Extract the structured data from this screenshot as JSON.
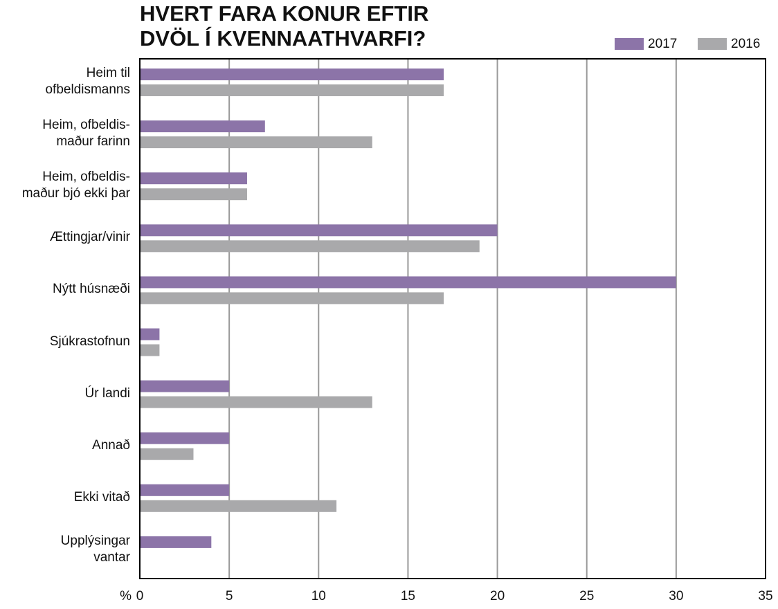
{
  "chart_data": {
    "type": "bar",
    "orientation": "horizontal",
    "title": "HVERT FARA KONUR EFTIR\nDVÖL Í KVENNAATHVARFI?",
    "x_unit": "%",
    "categories": [
      "Heim til\nofbeldismanns",
      "Heim, ofbeldis-\nmaður farinn",
      "Heim, ofbeldis-\nmaður bjó ekki þar",
      "Ættingjar/vinir",
      "Nýtt húsnæði",
      "Sjúkrastofnun",
      "Úr landi",
      "Annað",
      "Ekki vitað",
      "Upplýsingar\nvantar"
    ],
    "series": [
      {
        "name": "2017",
        "color": "#8c74a8",
        "values": [
          17,
          7,
          6,
          20,
          30,
          1.1,
          5,
          5,
          5,
          4
        ]
      },
      {
        "name": "2016",
        "color": "#a9a9ab",
        "values": [
          17,
          13,
          6,
          19,
          17,
          1.1,
          13,
          3,
          11,
          null
        ]
      }
    ],
    "xlim": [
      0,
      35
    ],
    "xticks": [
      0,
      5,
      10,
      15,
      20,
      25,
      30,
      35
    ],
    "grid": true,
    "legend": "top-right"
  }
}
